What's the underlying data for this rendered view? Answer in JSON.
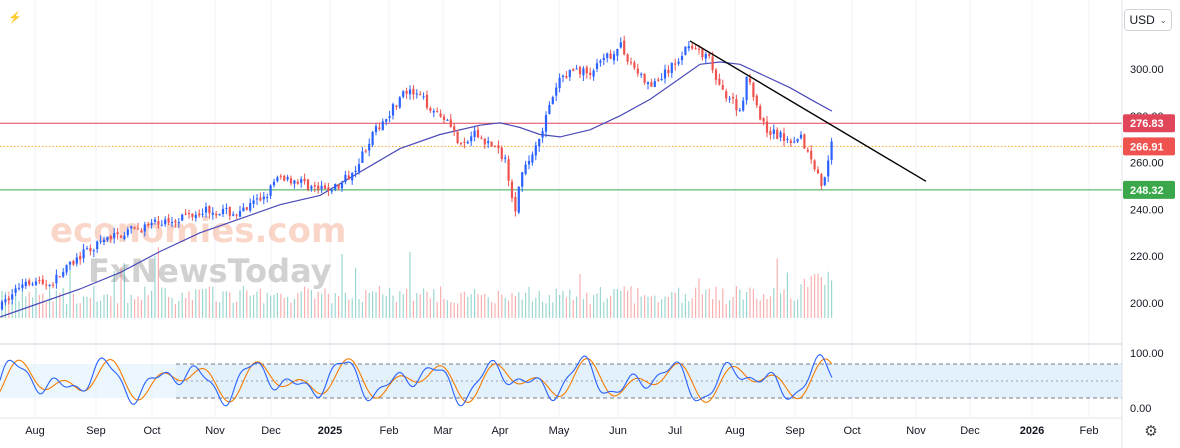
{
  "toolbar": {
    "currency": "USD",
    "settings_icon": "gear-icon"
  },
  "watermark": {
    "line1": "economies.com",
    "line2": "FxNewsToday"
  },
  "colors": {
    "up": "#2962ff",
    "down": "#ef5350",
    "ma": "#4a4ab8",
    "resistance": "#e0455a",
    "support": "#3aa84a",
    "last_price": "#ef5350",
    "trendline": "#000000",
    "stoch_k": "#2962ff",
    "stoch_d": "#f57c00",
    "volume_up": "#26a69a",
    "volume_down": "#ef5350"
  },
  "chart_data": {
    "type": "candlestick",
    "x_labels": [
      "Aug",
      "Sep",
      "Oct",
      "Nov",
      "Dec",
      "2025",
      "Feb",
      "Mar",
      "Apr",
      "May",
      "Jun",
      "Jul",
      "Aug",
      "Sep",
      "Oct",
      "Nov",
      "Dec",
      "2026",
      "Feb"
    ],
    "y_ticks": [
      "300.00",
      "280.00",
      "260.00",
      "240.00",
      "220.00",
      "200.00"
    ],
    "ylim": [
      190,
      318
    ],
    "horizontal_levels": [
      {
        "label": "276.83",
        "value": 276.83,
        "color": "#e0455a"
      },
      {
        "label": "266.91",
        "value": 266.91,
        "color": "#ef5350",
        "style": "dotted"
      },
      {
        "label": "248.32",
        "value": 248.32,
        "color": "#3aa84a"
      }
    ],
    "trendline": {
      "from": [
        "Jul",
        312
      ],
      "to": [
        "Nov",
        252
      ]
    },
    "price_path": [
      [
        0,
        198
      ],
      [
        25,
        210
      ],
      [
        50,
        208
      ],
      [
        80,
        220
      ],
      [
        110,
        228
      ],
      [
        140,
        232
      ],
      [
        175,
        236
      ],
      [
        205,
        240
      ],
      [
        240,
        238
      ],
      [
        265,
        246
      ],
      [
        280,
        254
      ],
      [
        300,
        252
      ],
      [
        320,
        248
      ],
      [
        340,
        250
      ],
      [
        355,
        258
      ],
      [
        370,
        270
      ],
      [
        390,
        282
      ],
      [
        405,
        290
      ],
      [
        420,
        288
      ],
      [
        435,
        282
      ],
      [
        450,
        278
      ],
      [
        460,
        266
      ],
      [
        475,
        272
      ],
      [
        490,
        268
      ],
      [
        505,
        262
      ],
      [
        515,
        240
      ],
      [
        520,
        252
      ],
      [
        530,
        262
      ],
      [
        540,
        272
      ],
      [
        550,
        284
      ],
      [
        560,
        296
      ],
      [
        575,
        300
      ],
      [
        590,
        298
      ],
      [
        605,
        304
      ],
      [
        620,
        310
      ],
      [
        635,
        300
      ],
      [
        650,
        292
      ],
      [
        660,
        296
      ],
      [
        675,
        302
      ],
      [
        690,
        312
      ],
      [
        700,
        306
      ],
      [
        710,
        304
      ],
      [
        718,
        292
      ],
      [
        730,
        288
      ],
      [
        740,
        282
      ],
      [
        748,
        298
      ],
      [
        756,
        286
      ],
      [
        762,
        276
      ],
      [
        775,
        272
      ],
      [
        790,
        270
      ],
      [
        800,
        272
      ],
      [
        808,
        264
      ],
      [
        815,
        258
      ],
      [
        822,
        250
      ],
      [
        828,
        262
      ],
      [
        832,
        269
      ]
    ],
    "ma_path": [
      [
        0,
        194
      ],
      [
        40,
        200
      ],
      [
        80,
        206
      ],
      [
        120,
        213
      ],
      [
        160,
        222
      ],
      [
        200,
        230
      ],
      [
        240,
        236
      ],
      [
        280,
        242
      ],
      [
        320,
        246
      ],
      [
        360,
        256
      ],
      [
        400,
        266
      ],
      [
        440,
        272
      ],
      [
        480,
        276
      ],
      [
        500,
        277
      ],
      [
        520,
        275
      ],
      [
        540,
        272
      ],
      [
        560,
        271
      ],
      [
        590,
        274
      ],
      [
        620,
        280
      ],
      [
        650,
        287
      ],
      [
        680,
        296
      ],
      [
        700,
        302
      ],
      [
        720,
        303
      ],
      [
        740,
        302
      ],
      [
        760,
        298
      ],
      [
        790,
        292
      ],
      [
        815,
        286
      ],
      [
        832,
        282
      ]
    ],
    "stochastic": {
      "ylim": [
        0,
        100
      ],
      "upper_band": 80,
      "lower_band": 20,
      "y_ticks": [
        "100.00",
        "0.00"
      ]
    }
  }
}
